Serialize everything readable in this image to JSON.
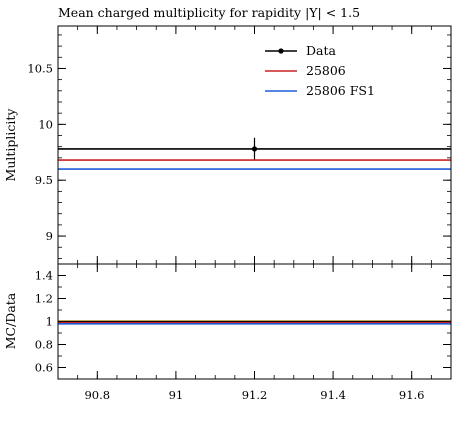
{
  "chart_data": [
    {
      "type": "line",
      "title": "Mean charged multiplicity for rapidity |Y| < 1.5",
      "ylabel": "Multiplicity",
      "xlabel": "",
      "xlim": [
        90.7,
        91.7
      ],
      "ylim": [
        8.75,
        10.88
      ],
      "x_ticks": [
        90.8,
        91,
        91.2,
        91.4,
        91.6
      ],
      "x_tick_labels": [
        "90.8",
        "91",
        "91.2",
        "91.4",
        "91.6"
      ],
      "y_ticks": [
        9,
        9.5,
        10,
        10.5
      ],
      "y_tick_labels": [
        "9",
        "9.5",
        "10",
        "10.5"
      ],
      "legend_position": "top-right",
      "grid": false,
      "series": [
        {
          "name": "Data",
          "color": "#000000",
          "style": "points-errorbar",
          "x": [
            91.2
          ],
          "y": [
            9.78
          ],
          "yerr": [
            0.1
          ],
          "hline": 9.78
        },
        {
          "name": "25806",
          "color": "#cc2222",
          "style": "hline",
          "y": 9.68
        },
        {
          "name": "25806 FS1",
          "color": "#1f5bd8",
          "style": "hline",
          "y": 9.6
        }
      ]
    },
    {
      "type": "line",
      "title": "",
      "ylabel": "MC/Data",
      "xlabel": "",
      "xlim": [
        90.7,
        91.7
      ],
      "ylim": [
        0.5,
        1.5
      ],
      "x_ticks": [
        90.8,
        91,
        91.2,
        91.4,
        91.6
      ],
      "x_tick_labels": [
        "90.8",
        "91",
        "91.2",
        "91.4",
        "91.6"
      ],
      "y_ticks": [
        0.6,
        0.8,
        1,
        1.2,
        1.4
      ],
      "y_tick_labels": [
        "0.6",
        "0.8",
        "1",
        "1.2",
        "1.4"
      ],
      "grid": false,
      "band": {
        "low": 0.99,
        "high": 1.01,
        "color": "#f5d31b"
      },
      "series": [
        {
          "name": "Data",
          "color": "#000000",
          "style": "hline",
          "y": 1.0
        },
        {
          "name": "25806",
          "color": "#cc2222",
          "style": "hline",
          "y": 0.99
        },
        {
          "name": "25806 FS1",
          "color": "#1f5bd8",
          "style": "hline",
          "y": 0.98
        }
      ]
    }
  ]
}
